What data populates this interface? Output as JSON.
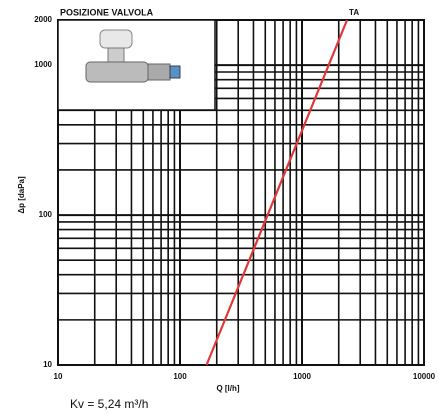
{
  "chart_data": {
    "type": "line",
    "title": "POSIZIONE VALVOLA",
    "xlabel": "Q [l/h]",
    "ylabel": "Δp [daPa]",
    "footnote": "Kv = 5,24 m³/h",
    "xscale": "log",
    "yscale": "log",
    "grid": true,
    "xlim": [
      10,
      10000
    ],
    "xticks": [
      10,
      100,
      1000,
      10000
    ],
    "ylim": [
      10,
      2000
    ],
    "yticks": [
      10,
      100,
      1000,
      2000
    ],
    "series": [
      {
        "name": "TA",
        "color": "#e0383a",
        "x": [
          165,
          2340
        ],
        "values": [
          10,
          2000
        ]
      }
    ]
  }
}
